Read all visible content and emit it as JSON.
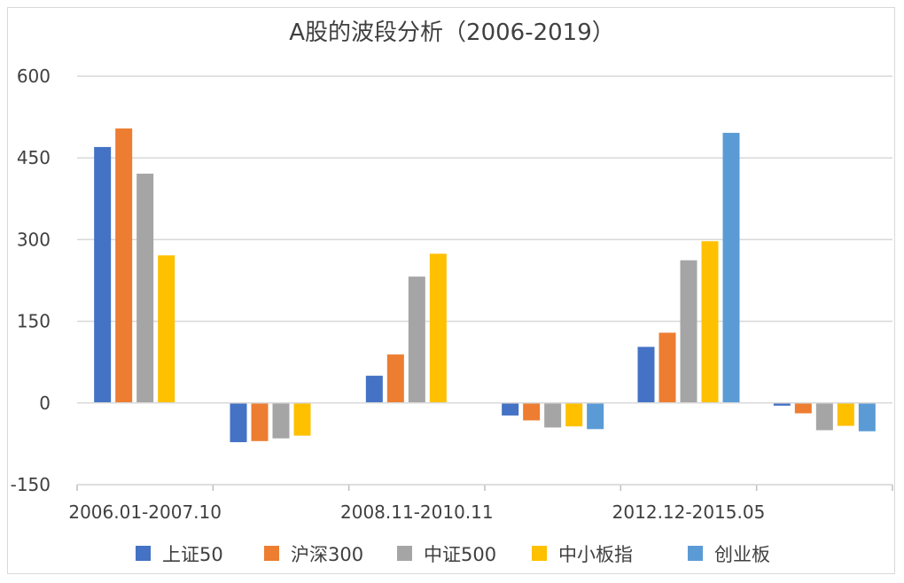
{
  "chart_data": {
    "type": "bar",
    "title": "A股的波段分析（2006-2019）",
    "xlabel": "",
    "ylabel": "",
    "ylim": [
      -150,
      600
    ],
    "yticks": [
      -150,
      0,
      150,
      300,
      450,
      600
    ],
    "grid": true,
    "legend_position": "bottom",
    "categories": [
      "2006.01-2007.10",
      "",
      "2008.11-2010.11",
      "",
      "2012.12-2015.05",
      ""
    ],
    "series": [
      {
        "name": "上证50",
        "color": "#4472c4",
        "values": [
          470,
          -72,
          50,
          -23,
          103,
          -5
        ]
      },
      {
        "name": "沪深300",
        "color": "#ed7d31",
        "values": [
          504,
          -70,
          89,
          -32,
          129,
          -19
        ]
      },
      {
        "name": "中证500",
        "color": "#a5a5a5",
        "values": [
          421,
          -65,
          232,
          -45,
          262,
          -50
        ]
      },
      {
        "name": "中小板指",
        "color": "#ffc000",
        "values": [
          271,
          -60,
          274,
          -43,
          297,
          -42
        ]
      },
      {
        "name": "创业板",
        "color": "#5b9bd5",
        "values": [
          null,
          null,
          null,
          -48,
          496,
          -52
        ]
      }
    ]
  }
}
